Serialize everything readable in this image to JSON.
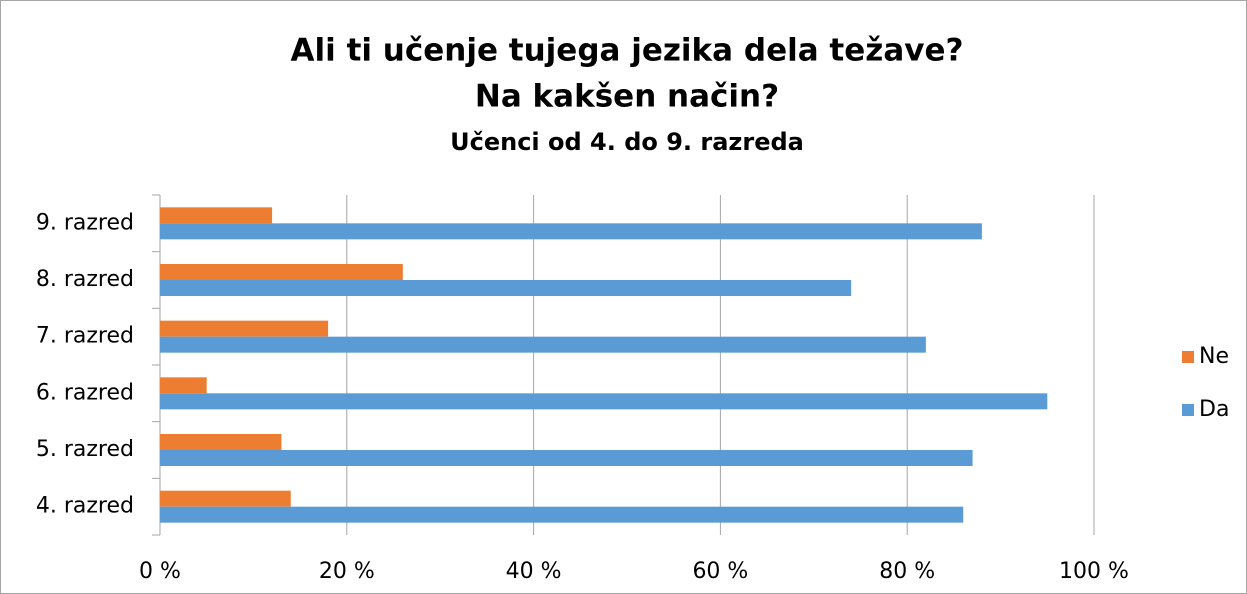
{
  "chart_data": {
    "type": "bar",
    "orientation": "horizontal",
    "title": [
      "Ali ti učenje tujega jezika dela težave?",
      "Na kakšen način?"
    ],
    "subtitle": "Učenci od 4. do 9. razreda",
    "categories": [
      "4. razred",
      "5. razred",
      "6. razred",
      "7. razred",
      "8. razred",
      "9. razred"
    ],
    "series": [
      {
        "name": "Ne",
        "color": "#ed7d31",
        "values": [
          14,
          13,
          5,
          18,
          26,
          12
        ]
      },
      {
        "name": "Da",
        "color": "#5b9bd5",
        "values": [
          86,
          87,
          95,
          82,
          74,
          88
        ]
      }
    ],
    "xlim": [
      0,
      100
    ],
    "xticks": [
      {
        "value": 0,
        "label": "0 %"
      },
      {
        "value": 20,
        "label": "20 %"
      },
      {
        "value": 40,
        "label": "40 %"
      },
      {
        "value": 60,
        "label": "60 %"
      },
      {
        "value": 80,
        "label": "80 %"
      },
      {
        "value": 100,
        "label": "100 %"
      }
    ],
    "grid": true,
    "legend": "right"
  }
}
